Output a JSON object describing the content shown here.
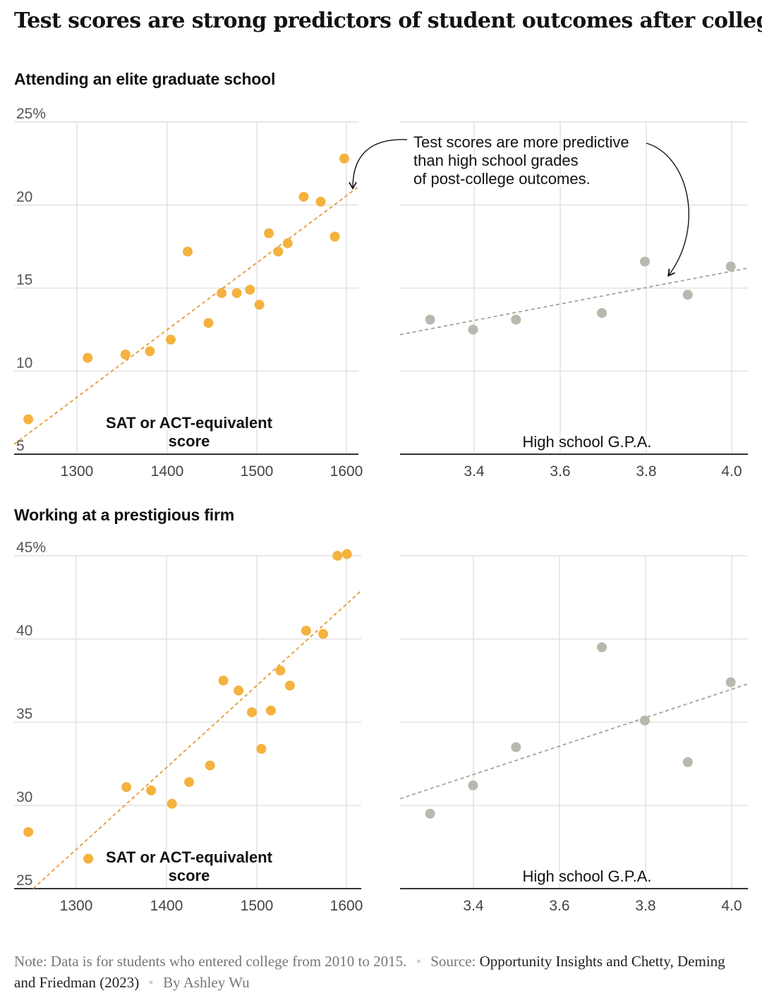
{
  "title": "Test scores are strong predictors of student outcomes after college",
  "annotation": [
    "Test scores are more predictive",
    "than high school grades",
    "of post-college outcomes."
  ],
  "footer": {
    "note_label": "Note:",
    "note_text": "Data is for students who entered college from 2010 to 2015.",
    "source_label": "Source:",
    "source_text": "Opportunity Insights and Chetty, Deming and Friedman (2023)",
    "byline": "By Ashley Wu"
  },
  "colors": {
    "sat": "#f4b23e",
    "sat_trend": "#e49a34",
    "gpa": "#b8b8ae",
    "gpa_trend": "#a3a39a",
    "grid": "#e2e2e2"
  },
  "sections": [
    {
      "title": "Attending an elite graduate school",
      "ylim": [
        5,
        25
      ],
      "yticks": [
        "25%",
        "20",
        "15",
        "10",
        "5"
      ]
    },
    {
      "title": "Working at a prestigious firm",
      "ylim": [
        25,
        45
      ],
      "yticks": [
        "45%",
        "40",
        "35",
        "30",
        "25"
      ]
    }
  ],
  "chart_data": [
    {
      "type": "scatter",
      "title": "Attending an elite graduate school",
      "xlabel": "SAT or ACT-equivalent score",
      "xlim": [
        1250,
        1615
      ],
      "ylim": [
        5,
        25
      ],
      "xticks": [
        "1300",
        "1400",
        "1500",
        "1600"
      ],
      "yticks": [
        "25%",
        "20",
        "15",
        "10",
        "5"
      ],
      "x": [
        1265,
        1328,
        1368,
        1394,
        1416,
        1434,
        1456,
        1470,
        1486,
        1500,
        1510,
        1520,
        1530,
        1540,
        1557,
        1575,
        1590,
        1600
      ],
      "y": [
        7.1,
        10.8,
        11.0,
        11.2,
        11.9,
        17.2,
        12.9,
        14.7,
        14.7,
        14.9,
        14.0,
        18.3,
        17.2,
        17.7,
        20.5,
        20.2,
        18.1,
        22.8
      ],
      "trendline": [
        [
          1250,
          5.6
        ],
        [
          1615,
          21.1
        ]
      ]
    },
    {
      "type": "scatter",
      "xlabel": "High school G.P.A.",
      "xlim": [
        3.23,
        4.04
      ],
      "ylim": [
        5,
        25
      ],
      "xticks": [
        "3.4",
        "3.6",
        "3.8",
        "4.0"
      ],
      "yticks": [],
      "x": [
        3.3,
        3.4,
        3.5,
        3.7,
        3.8,
        3.9,
        4.0
      ],
      "y": [
        13.1,
        12.5,
        13.1,
        13.5,
        16.6,
        14.6,
        16.3
      ],
      "trendline": [
        [
          3.23,
          12.2
        ],
        [
          4.04,
          16.2
        ]
      ]
    },
    {
      "type": "scatter",
      "title": "Working at a prestigious firm",
      "xlabel": "SAT or ACT-equivalent score",
      "xlim": [
        1250,
        1615
      ],
      "ylim": [
        25,
        45
      ],
      "xticks": [
        "1300",
        "1400",
        "1500",
        "1600"
      ],
      "yticks": [
        "45%",
        "40",
        "35",
        "30",
        "25"
      ],
      "x": [
        1265,
        1328,
        1368,
        1394,
        1416,
        1434,
        1456,
        1470,
        1486,
        1500,
        1510,
        1520,
        1530,
        1540,
        1557,
        1575,
        1590,
        1600
      ],
      "y": [
        28.4,
        26.8,
        31.1,
        30.9,
        30.1,
        31.4,
        32.4,
        37.5,
        36.9,
        35.6,
        33.4,
        35.7,
        38.1,
        37.2,
        40.5,
        40.3,
        45.0,
        45.1
      ],
      "trendline": [
        [
          1270,
          25.0
        ],
        [
          1615,
          42.9
        ]
      ]
    },
    {
      "type": "scatter",
      "xlabel": "High school G.P.A.",
      "xlim": [
        3.23,
        4.04
      ],
      "ylim": [
        25,
        45
      ],
      "xticks": [
        "3.4",
        "3.6",
        "3.8",
        "4.0"
      ],
      "yticks": [],
      "x": [
        3.3,
        3.4,
        3.5,
        3.7,
        3.8,
        3.9,
        4.0
      ],
      "y": [
        29.5,
        31.2,
        33.5,
        39.5,
        35.1,
        32.6,
        37.4
      ],
      "trendline": [
        [
          3.23,
          30.4
        ],
        [
          4.04,
          37.3
        ]
      ]
    }
  ]
}
